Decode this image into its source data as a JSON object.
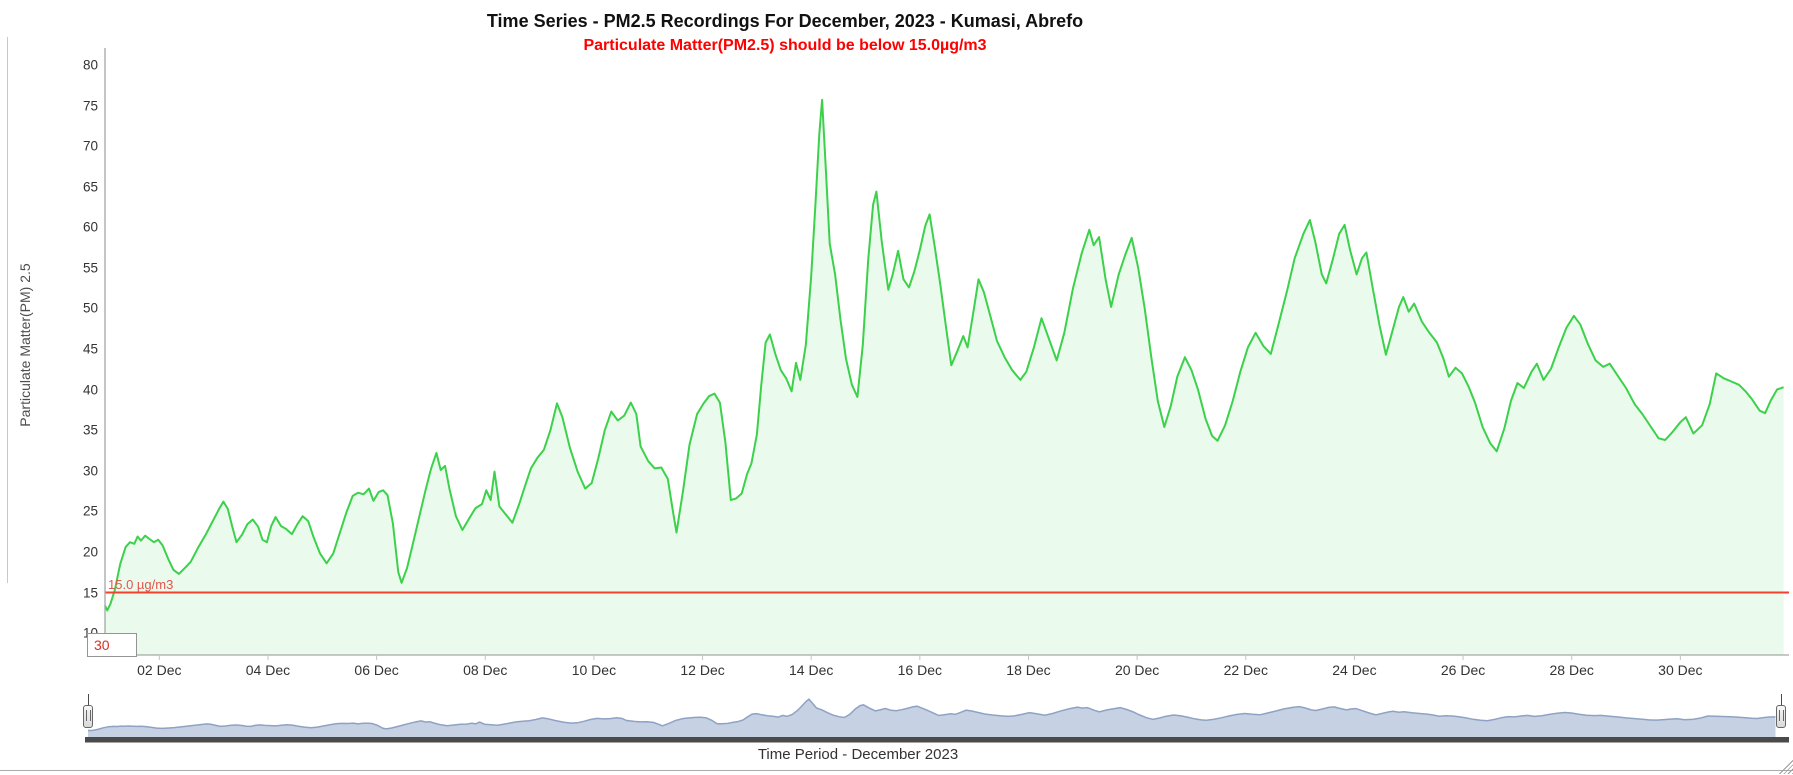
{
  "chart_data": {
    "type": "area",
    "title": "Time Series - PM2.5 Recordings For December, 2023 - Kumasi, Abrefo",
    "subtitle": "Particulate Matter(PM2.5) should be below 15.0µg/m3",
    "subtitle_color": "#ff0000",
    "x_axis": {
      "title": "Time Period - December 2023",
      "range": [
        1,
        32
      ],
      "ticks": [
        {
          "day": 2,
          "label": "02 Dec"
        },
        {
          "day": 4,
          "label": "04 Dec"
        },
        {
          "day": 6,
          "label": "06 Dec"
        },
        {
          "day": 8,
          "label": "08 Dec"
        },
        {
          "day": 10,
          "label": "10 Dec"
        },
        {
          "day": 12,
          "label": "12 Dec"
        },
        {
          "day": 14,
          "label": "14 Dec"
        },
        {
          "day": 16,
          "label": "16 Dec"
        },
        {
          "day": 18,
          "label": "18 Dec"
        },
        {
          "day": 20,
          "label": "20 Dec"
        },
        {
          "day": 22,
          "label": "22 Dec"
        },
        {
          "day": 24,
          "label": "24 Dec"
        },
        {
          "day": 26,
          "label": "26 Dec"
        },
        {
          "day": 28,
          "label": "28 Dec"
        },
        {
          "day": 30,
          "label": "30 Dec"
        }
      ]
    },
    "y_axis": {
      "title": "Particulate Matter(PM) 2.5",
      "ticks": [
        10,
        15,
        20,
        25,
        30,
        35,
        40,
        45,
        50,
        55,
        60,
        65,
        70,
        75,
        80
      ],
      "min": 7.3,
      "max": 82.1
    },
    "threshold": {
      "value": 15.0,
      "label": "15.0 µg/m3",
      "line_color": "#f4402f",
      "label_color": "#e2574e"
    },
    "axis_value_box": {
      "value": "30",
      "color": "#d93025"
    },
    "series": [
      {
        "name": "PM2.5",
        "line_color": "#3cd14a",
        "fill_color": "#eafaec",
        "points": [
          [
            1.0,
            13.4
          ],
          [
            1.04,
            12.8
          ],
          [
            1.1,
            13.6
          ],
          [
            1.18,
            15.3
          ],
          [
            1.28,
            18.5
          ],
          [
            1.38,
            20.6
          ],
          [
            1.46,
            21.2
          ],
          [
            1.54,
            21.0
          ],
          [
            1.6,
            21.9
          ],
          [
            1.66,
            21.4
          ],
          [
            1.74,
            22.0
          ],
          [
            1.82,
            21.6
          ],
          [
            1.9,
            21.2
          ],
          [
            1.98,
            21.5
          ],
          [
            2.06,
            20.8
          ],
          [
            2.16,
            19.2
          ],
          [
            2.26,
            17.8
          ],
          [
            2.36,
            17.3
          ],
          [
            2.48,
            18.1
          ],
          [
            2.58,
            18.8
          ],
          [
            2.72,
            20.6
          ],
          [
            2.86,
            22.2
          ],
          [
            3.0,
            24.0
          ],
          [
            3.1,
            25.3
          ],
          [
            3.18,
            26.2
          ],
          [
            3.26,
            25.3
          ],
          [
            3.34,
            23.2
          ],
          [
            3.42,
            21.2
          ],
          [
            3.52,
            22.1
          ],
          [
            3.62,
            23.4
          ],
          [
            3.72,
            24.0
          ],
          [
            3.82,
            23.1
          ],
          [
            3.9,
            21.5
          ],
          [
            3.98,
            21.2
          ],
          [
            4.06,
            23.2
          ],
          [
            4.14,
            24.3
          ],
          [
            4.24,
            23.2
          ],
          [
            4.34,
            22.8
          ],
          [
            4.44,
            22.2
          ],
          [
            4.54,
            23.4
          ],
          [
            4.64,
            24.4
          ],
          [
            4.74,
            23.8
          ],
          [
            4.84,
            21.8
          ],
          [
            4.96,
            19.8
          ],
          [
            5.08,
            18.6
          ],
          [
            5.2,
            19.8
          ],
          [
            5.32,
            22.3
          ],
          [
            5.44,
            24.8
          ],
          [
            5.56,
            26.9
          ],
          [
            5.66,
            27.3
          ],
          [
            5.76,
            27.1
          ],
          [
            5.86,
            27.8
          ],
          [
            5.94,
            26.3
          ],
          [
            6.04,
            27.4
          ],
          [
            6.12,
            27.6
          ],
          [
            6.2,
            27.0
          ],
          [
            6.3,
            23.5
          ],
          [
            6.4,
            17.5
          ],
          [
            6.46,
            16.2
          ],
          [
            6.56,
            18.0
          ],
          [
            6.66,
            20.8
          ],
          [
            6.78,
            24.2
          ],
          [
            6.9,
            27.6
          ],
          [
            7.0,
            30.2
          ],
          [
            7.1,
            32.2
          ],
          [
            7.18,
            30.1
          ],
          [
            7.26,
            30.6
          ],
          [
            7.34,
            27.8
          ],
          [
            7.46,
            24.4
          ],
          [
            7.58,
            22.7
          ],
          [
            7.7,
            24.1
          ],
          [
            7.82,
            25.4
          ],
          [
            7.94,
            25.9
          ],
          [
            8.02,
            27.6
          ],
          [
            8.1,
            26.4
          ],
          [
            8.17,
            29.9
          ],
          [
            8.26,
            25.6
          ],
          [
            8.38,
            24.6
          ],
          [
            8.5,
            23.6
          ],
          [
            8.62,
            25.8
          ],
          [
            8.74,
            28.3
          ],
          [
            8.84,
            30.3
          ],
          [
            8.96,
            31.6
          ],
          [
            9.08,
            32.6
          ],
          [
            9.2,
            35.0
          ],
          [
            9.32,
            38.3
          ],
          [
            9.42,
            36.6
          ],
          [
            9.56,
            32.8
          ],
          [
            9.7,
            29.9
          ],
          [
            9.84,
            27.8
          ],
          [
            9.96,
            28.5
          ],
          [
            10.08,
            31.5
          ],
          [
            10.2,
            35.0
          ],
          [
            10.32,
            37.3
          ],
          [
            10.44,
            36.2
          ],
          [
            10.56,
            36.8
          ],
          [
            10.68,
            38.4
          ],
          [
            10.78,
            37.0
          ],
          [
            10.86,
            33.0
          ],
          [
            11.0,
            31.2
          ],
          [
            11.12,
            30.3
          ],
          [
            11.24,
            30.4
          ],
          [
            11.36,
            29.0
          ],
          [
            11.46,
            24.8
          ],
          [
            11.52,
            22.4
          ],
          [
            11.64,
            27.5
          ],
          [
            11.76,
            33.2
          ],
          [
            11.9,
            37.0
          ],
          [
            12.02,
            38.3
          ],
          [
            12.12,
            39.2
          ],
          [
            12.22,
            39.5
          ],
          [
            12.32,
            38.4
          ],
          [
            12.42,
            33.5
          ],
          [
            12.52,
            26.4
          ],
          [
            12.62,
            26.6
          ],
          [
            12.72,
            27.2
          ],
          [
            12.82,
            29.6
          ],
          [
            12.9,
            30.9
          ],
          [
            13.0,
            34.5
          ],
          [
            13.08,
            40.5
          ],
          [
            13.16,
            45.8
          ],
          [
            13.24,
            46.8
          ],
          [
            13.34,
            44.4
          ],
          [
            13.44,
            42.4
          ],
          [
            13.54,
            41.4
          ],
          [
            13.64,
            39.8
          ],
          [
            13.72,
            43.3
          ],
          [
            13.8,
            41.2
          ],
          [
            13.9,
            45.5
          ],
          [
            14.0,
            54.0
          ],
          [
            14.08,
            63.0
          ],
          [
            14.15,
            71.5
          ],
          [
            14.2,
            75.7
          ],
          [
            14.27,
            67.0
          ],
          [
            14.34,
            58.0
          ],
          [
            14.44,
            54.2
          ],
          [
            14.54,
            48.6
          ],
          [
            14.64,
            43.8
          ],
          [
            14.75,
            40.6
          ],
          [
            14.85,
            39.1
          ],
          [
            14.95,
            45.5
          ],
          [
            15.05,
            56.0
          ],
          [
            15.14,
            62.8
          ],
          [
            15.2,
            64.4
          ],
          [
            15.3,
            58.2
          ],
          [
            15.42,
            52.3
          ],
          [
            15.5,
            54.2
          ],
          [
            15.6,
            57.1
          ],
          [
            15.7,
            53.6
          ],
          [
            15.8,
            52.6
          ],
          [
            15.9,
            54.6
          ],
          [
            16.0,
            57.2
          ],
          [
            16.1,
            60.2
          ],
          [
            16.18,
            61.6
          ],
          [
            16.28,
            57.4
          ],
          [
            16.38,
            52.8
          ],
          [
            16.48,
            47.8
          ],
          [
            16.58,
            43.0
          ],
          [
            16.68,
            44.6
          ],
          [
            16.8,
            46.6
          ],
          [
            16.88,
            45.2
          ],
          [
            17.0,
            50.2
          ],
          [
            17.08,
            53.6
          ],
          [
            17.18,
            52.0
          ],
          [
            17.3,
            49.0
          ],
          [
            17.42,
            46.0
          ],
          [
            17.56,
            44.0
          ],
          [
            17.7,
            42.4
          ],
          [
            17.85,
            41.2
          ],
          [
            17.96,
            42.2
          ],
          [
            18.1,
            45.2
          ],
          [
            18.24,
            48.8
          ],
          [
            18.38,
            46.2
          ],
          [
            18.52,
            43.6
          ],
          [
            18.66,
            47.0
          ],
          [
            18.82,
            52.5
          ],
          [
            18.98,
            56.8
          ],
          [
            19.12,
            59.7
          ],
          [
            19.2,
            57.8
          ],
          [
            19.3,
            58.8
          ],
          [
            19.42,
            53.6
          ],
          [
            19.52,
            50.2
          ],
          [
            19.66,
            54.2
          ],
          [
            19.78,
            56.6
          ],
          [
            19.9,
            58.7
          ],
          [
            20.02,
            55.0
          ],
          [
            20.14,
            50.0
          ],
          [
            20.26,
            44.0
          ],
          [
            20.38,
            38.6
          ],
          [
            20.5,
            35.4
          ],
          [
            20.62,
            38.0
          ],
          [
            20.74,
            41.6
          ],
          [
            20.88,
            44.0
          ],
          [
            21.0,
            42.4
          ],
          [
            21.12,
            40.0
          ],
          [
            21.26,
            36.4
          ],
          [
            21.38,
            34.3
          ],
          [
            21.48,
            33.7
          ],
          [
            21.62,
            35.6
          ],
          [
            21.76,
            38.6
          ],
          [
            21.9,
            42.2
          ],
          [
            22.04,
            45.2
          ],
          [
            22.18,
            47.0
          ],
          [
            22.32,
            45.4
          ],
          [
            22.46,
            44.4
          ],
          [
            22.6,
            48.0
          ],
          [
            22.76,
            52.2
          ],
          [
            22.9,
            56.2
          ],
          [
            23.06,
            59.2
          ],
          [
            23.18,
            60.9
          ],
          [
            23.28,
            58.2
          ],
          [
            23.4,
            54.2
          ],
          [
            23.48,
            53.1
          ],
          [
            23.6,
            56.0
          ],
          [
            23.72,
            59.2
          ],
          [
            23.82,
            60.3
          ],
          [
            23.92,
            57.2
          ],
          [
            24.04,
            54.2
          ],
          [
            24.14,
            56.2
          ],
          [
            24.22,
            56.9
          ],
          [
            24.34,
            52.4
          ],
          [
            24.46,
            48.0
          ],
          [
            24.58,
            44.3
          ],
          [
            24.7,
            47.2
          ],
          [
            24.82,
            50.2
          ],
          [
            24.9,
            51.4
          ],
          [
            25.0,
            49.6
          ],
          [
            25.1,
            50.6
          ],
          [
            25.24,
            48.4
          ],
          [
            25.38,
            47.0
          ],
          [
            25.52,
            45.8
          ],
          [
            25.64,
            43.8
          ],
          [
            25.74,
            41.6
          ],
          [
            25.86,
            42.7
          ],
          [
            25.98,
            42.0
          ],
          [
            26.1,
            40.4
          ],
          [
            26.22,
            38.4
          ],
          [
            26.36,
            35.4
          ],
          [
            26.5,
            33.4
          ],
          [
            26.62,
            32.4
          ],
          [
            26.76,
            35.2
          ],
          [
            26.88,
            38.6
          ],
          [
            27.0,
            40.8
          ],
          [
            27.12,
            40.2
          ],
          [
            27.26,
            42.2
          ],
          [
            27.36,
            43.2
          ],
          [
            27.48,
            41.2
          ],
          [
            27.62,
            42.6
          ],
          [
            27.76,
            45.2
          ],
          [
            27.9,
            47.6
          ],
          [
            28.04,
            49.1
          ],
          [
            28.16,
            48.0
          ],
          [
            28.3,
            45.6
          ],
          [
            28.44,
            43.6
          ],
          [
            28.58,
            42.8
          ],
          [
            28.7,
            43.2
          ],
          [
            28.86,
            41.6
          ],
          [
            29.0,
            40.2
          ],
          [
            29.16,
            38.2
          ],
          [
            29.3,
            37.0
          ],
          [
            29.46,
            35.4
          ],
          [
            29.6,
            34.0
          ],
          [
            29.72,
            33.8
          ],
          [
            29.86,
            34.8
          ],
          [
            30.0,
            36.0
          ],
          [
            30.1,
            36.6
          ],
          [
            30.24,
            34.6
          ],
          [
            30.4,
            35.6
          ],
          [
            30.54,
            38.2
          ],
          [
            30.66,
            42.0
          ],
          [
            30.8,
            41.4
          ],
          [
            30.94,
            41.0
          ],
          [
            31.08,
            40.6
          ],
          [
            31.2,
            39.8
          ],
          [
            31.32,
            38.8
          ],
          [
            31.46,
            37.4
          ],
          [
            31.56,
            37.1
          ],
          [
            31.66,
            38.6
          ],
          [
            31.78,
            40.0
          ],
          [
            31.9,
            40.3
          ]
        ]
      }
    ],
    "navigator": {
      "fill_color": "#c7d1e4",
      "line_color": "#8fa2c4",
      "bar_color": "#4a4a4a"
    },
    "axis_line_color": "#a6a6a6",
    "grid": false,
    "legend": "none"
  }
}
